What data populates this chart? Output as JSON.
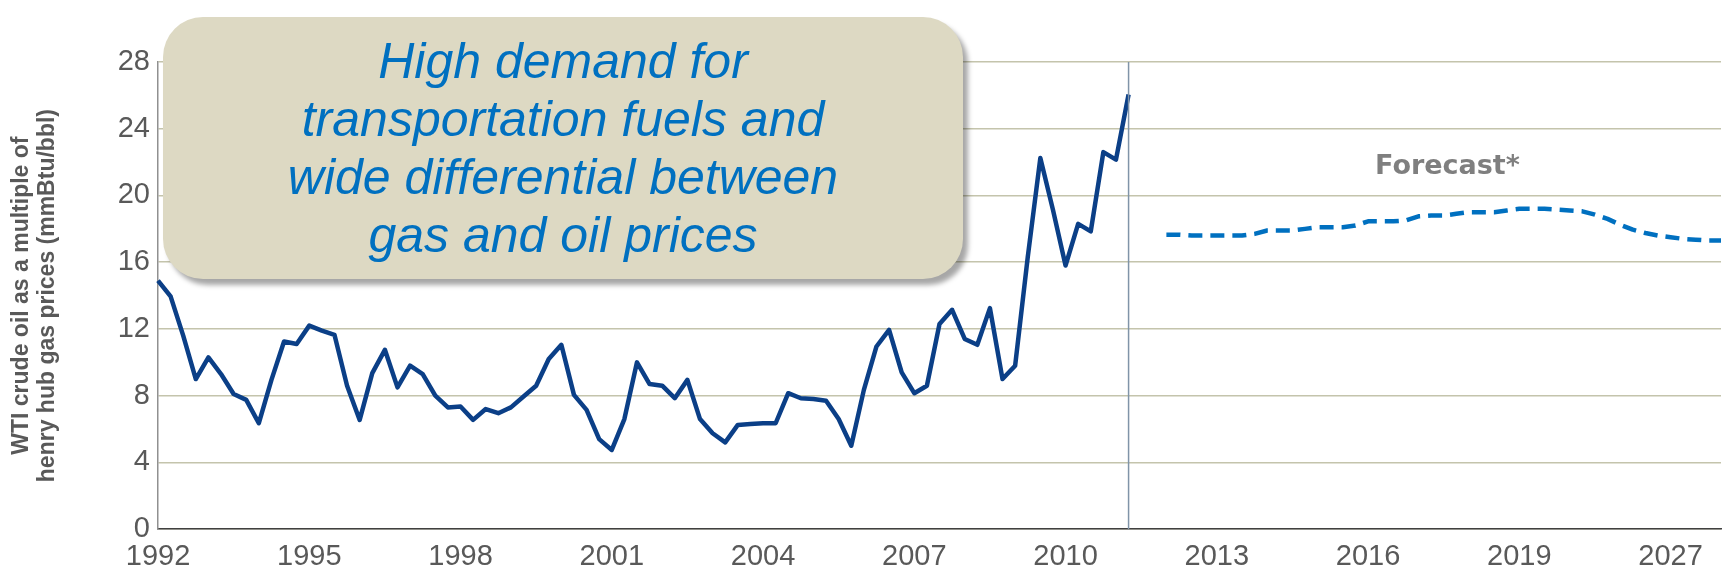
{
  "chart_data": {
    "type": "line",
    "ylabel": "WTI crude oil as a multiple of\nhenry hub gas prices (mmBtu/bbl)",
    "categories": [
      "1992",
      null,
      null,
      null,
      null,
      null,
      null,
      null,
      null,
      null,
      null,
      null,
      "1995",
      null,
      null,
      null,
      null,
      null,
      null,
      null,
      null,
      null,
      null,
      null,
      "1998",
      null,
      null,
      null,
      null,
      null,
      null,
      null,
      null,
      null,
      null,
      null,
      "2001",
      null,
      null,
      null,
      null,
      null,
      null,
      null,
      null,
      null,
      null,
      null,
      "2004",
      null,
      null,
      null,
      null,
      null,
      null,
      null,
      null,
      null,
      null,
      null,
      "2007",
      null,
      null,
      null,
      null,
      null,
      null,
      null,
      null,
      null,
      null,
      null,
      "2010",
      null,
      null,
      null,
      null,
      null,
      null,
      null,
      null,
      null,
      null,
      null,
      "2013",
      null,
      null,
      null,
      null,
      null,
      null,
      null,
      null,
      null,
      null,
      null,
      "2016",
      null,
      null,
      null,
      null,
      null,
      null,
      null,
      null,
      null,
      null,
      null,
      "2019",
      null,
      null,
      null,
      null,
      null,
      null,
      null,
      null,
      null,
      null,
      null,
      "2027",
      null,
      null,
      null,
      null
    ],
    "series": [
      {
        "color": "#0b3f87",
        "line_style": "solid",
        "values": [
          14.9,
          13.95,
          11.6,
          9.0,
          10.3,
          9.3,
          8.1,
          7.75,
          6.35,
          8.95,
          11.25,
          11.1,
          12.2,
          11.9,
          11.65,
          8.6,
          6.55,
          9.35,
          10.75,
          8.5,
          9.8,
          9.3,
          8.0,
          7.3,
          7.35,
          6.55,
          7.2,
          6.95,
          7.3,
          7.95,
          8.6,
          10.2,
          11.05,
          8.05,
          7.15,
          5.4,
          4.75,
          6.6,
          10.0,
          8.7,
          8.6,
          7.85,
          8.95,
          6.6,
          5.75,
          5.2,
          6.25,
          6.3,
          6.35,
          6.35,
          8.15,
          7.85,
          7.8,
          7.7,
          6.6,
          5.0,
          8.35,
          10.95,
          11.95,
          9.4,
          8.15,
          8.6,
          12.3,
          13.15,
          11.4,
          11.05,
          13.25,
          9.0,
          9.8,
          16.3,
          22.25,
          19.15,
          15.8,
          18.3,
          17.85,
          22.6,
          22.15,
          26.05,
          null,
          null,
          null,
          null,
          null,
          null,
          null,
          null,
          null,
          null,
          null,
          null,
          null,
          null,
          null,
          null,
          null,
          null,
          null,
          null,
          null,
          null,
          null,
          null,
          null,
          null,
          null,
          null,
          null,
          null,
          null,
          null,
          null,
          null,
          null,
          null,
          null,
          null,
          null,
          null,
          null,
          null,
          null,
          null,
          null,
          null,
          null
        ]
      },
      {
        "color": "#0070c0",
        "line_style": "dashed",
        "values": [
          null,
          null,
          null,
          null,
          null,
          null,
          null,
          null,
          null,
          null,
          null,
          null,
          null,
          null,
          null,
          null,
          null,
          null,
          null,
          null,
          null,
          null,
          null,
          null,
          null,
          null,
          null,
          null,
          null,
          null,
          null,
          null,
          null,
          null,
          null,
          null,
          null,
          null,
          null,
          null,
          null,
          null,
          null,
          null,
          null,
          null,
          null,
          null,
          null,
          null,
          null,
          null,
          null,
          null,
          null,
          null,
          null,
          null,
          null,
          null,
          null,
          null,
          null,
          null,
          null,
          null,
          null,
          null,
          null,
          null,
          null,
          null,
          null,
          null,
          null,
          null,
          null,
          null,
          null,
          null,
          17.65,
          17.65,
          17.6,
          17.6,
          17.6,
          17.6,
          17.6,
          17.7,
          17.9,
          17.9,
          17.9,
          18.0,
          18.1,
          18.1,
          18.1,
          18.2,
          18.45,
          18.45,
          18.45,
          18.5,
          18.75,
          18.8,
          18.8,
          18.9,
          19.0,
          19.0,
          19.0,
          19.1,
          19.2,
          19.2,
          19.2,
          19.15,
          19.1,
          19.05,
          18.85,
          18.6,
          18.25,
          17.95,
          17.75,
          17.6,
          17.5,
          17.4,
          17.35,
          17.3,
          17.3
        ]
      }
    ],
    "ylim": [
      0,
      28
    ],
    "yticks": [
      0,
      4,
      8,
      12,
      16,
      20,
      24,
      28
    ],
    "grid": "y",
    "marker": "none",
    "legend": false,
    "annotations": [
      "High demand for transportation fuels and wide differential between gas and oil prices",
      "Forecast*"
    ]
  }
}
